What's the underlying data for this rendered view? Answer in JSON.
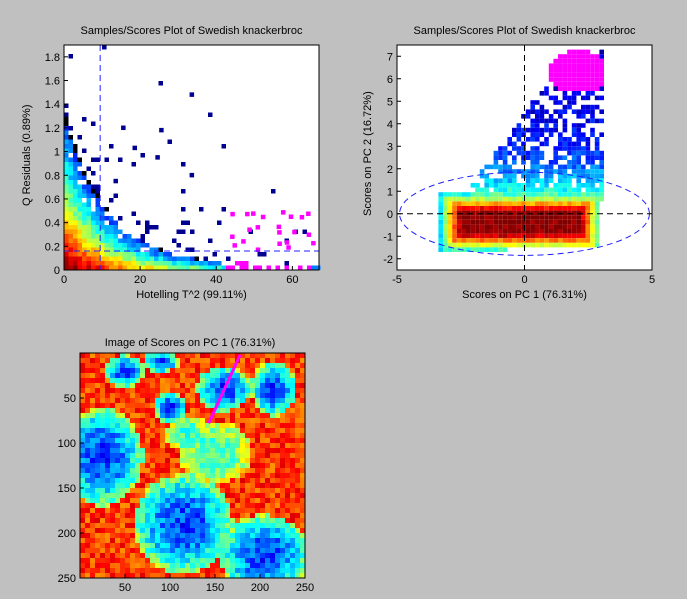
{
  "colors": {
    "figure_bg": "#c0c0c0",
    "axes_bg": "#ffffff",
    "low_density": "#000090",
    "mid_density": "#00b0ff",
    "high_density": "#800000",
    "highlight": "#ff00ff",
    "limit_line": "#2020ff"
  },
  "chart_data": [
    {
      "id": "hotelling-q",
      "type": "heatmap",
      "title": "Samples/Scores Plot of Swedish knackerbroc",
      "xlabel": "Hotelling T^2 (99.11%)",
      "ylabel": "Q Residuals (0.89%)",
      "xlim": [
        0,
        67
      ],
      "ylim": [
        0,
        1.9
      ],
      "xticks": [
        "0",
        "20",
        "40",
        "60"
      ],
      "yticks": [
        "0",
        "0.2",
        "0.4",
        "0.6",
        "0.8",
        "1",
        "1.2",
        "1.4",
        "1.6",
        "1.8"
      ],
      "limits": {
        "t2_95": 9.5,
        "q_95": 0.16
      },
      "highlight_region": {
        "x": [
          42,
          65
        ],
        "y": [
          0,
          0.5
        ]
      },
      "grid": false
    },
    {
      "id": "pc1-pc2",
      "type": "heatmap",
      "title": "Samples/Scores Plot of Swedish knackerbroc",
      "xlabel": "Scores on PC 1 (76.31%)",
      "ylabel": "Scores on PC 2 (16.72%)",
      "xlim": [
        -5,
        5
      ],
      "ylim": [
        -2.5,
        7.5
      ],
      "xticks": [
        "-5",
        "0",
        "5"
      ],
      "yticks": [
        "-2",
        "-1",
        "0",
        "1",
        "2",
        "3",
        "4",
        "5",
        "6",
        "7"
      ],
      "ellipse": {
        "cx": 0,
        "cy": 0,
        "rx": 4.9,
        "ry": 1.85
      },
      "highlight_region": {
        "x": [
          0.9,
          3.2
        ],
        "y": [
          5.4,
          7.2
        ]
      },
      "grid": false
    },
    {
      "id": "pc1-image",
      "type": "heatmap",
      "title": "Image of Scores on PC 1 (76.31%)",
      "xlim": [
        0,
        250
      ],
      "ylim": [
        250,
        0
      ],
      "xticks": [
        "50",
        "100",
        "150",
        "200",
        "250"
      ],
      "yticks": [
        "50",
        "100",
        "150",
        "200",
        "250"
      ],
      "colormap": "jet",
      "grid": false
    }
  ]
}
